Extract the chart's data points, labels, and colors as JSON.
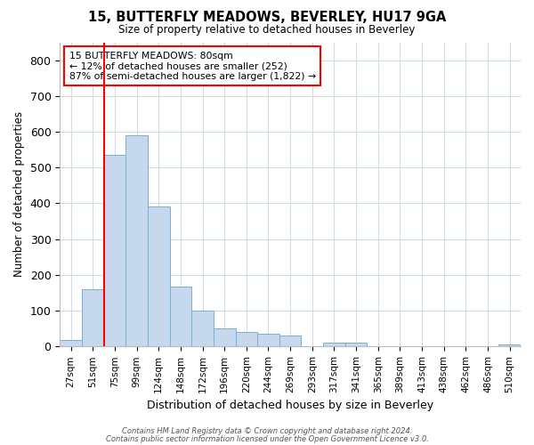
{
  "title": "15, BUTTERFLY MEADOWS, BEVERLEY, HU17 9GA",
  "subtitle": "Size of property relative to detached houses in Beverley",
  "xlabel": "Distribution of detached houses by size in Beverley",
  "ylabel": "Number of detached properties",
  "footnote1": "Contains HM Land Registry data © Crown copyright and database right 2024.",
  "footnote2": "Contains public sector information licensed under the Open Government Licence v3.0.",
  "annotation_line1": "15 BUTTERFLY MEADOWS: 80sqm",
  "annotation_line2": "← 12% of detached houses are smaller (252)",
  "annotation_line3": "87% of semi-detached houses are larger (1,822) →",
  "bar_labels": [
    "27sqm",
    "51sqm",
    "75sqm",
    "99sqm",
    "124sqm",
    "148sqm",
    "172sqm",
    "196sqm",
    "220sqm",
    "244sqm",
    "269sqm",
    "293sqm",
    "317sqm",
    "341sqm",
    "365sqm",
    "389sqm",
    "413sqm",
    "438sqm",
    "462sqm",
    "486sqm",
    "510sqm"
  ],
  "bar_values": [
    18,
    160,
    535,
    590,
    390,
    167,
    101,
    50,
    40,
    35,
    30,
    0,
    10,
    10,
    0,
    0,
    0,
    0,
    0,
    0,
    7
  ],
  "bar_color": "#c5d8ed",
  "bar_edge_color": "#7aaed4",
  "red_line_index": 2,
  "ylim": [
    0,
    850
  ],
  "yticks": [
    0,
    100,
    200,
    300,
    400,
    500,
    600,
    700,
    800
  ],
  "bg_color": "#ffffff",
  "grid_color": "#d0dce8"
}
